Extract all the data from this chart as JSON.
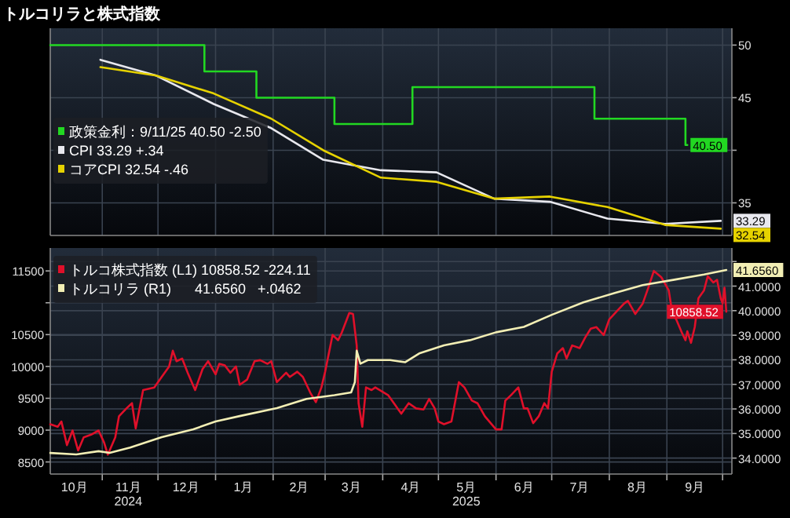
{
  "chart_data": [
    {
      "type": "line",
      "title": "トルコリラと株式指数",
      "legend": "left",
      "grid": true,
      "tick_labels": "y",
      "xlim": [
        "2024-10-04",
        "2025-10-06"
      ],
      "xticks": [
        {
          "value": "2024-11-01",
          "label": null
        },
        {
          "value": "2024-12-01",
          "label": null
        },
        {
          "value": "2025-01-01",
          "label": null
        },
        {
          "value": "2025-02-01",
          "label": null
        },
        {
          "value": "2025-03-01",
          "label": null
        },
        {
          "value": "2025-04-01",
          "label": null
        },
        {
          "value": "2025-05-01",
          "label": null
        },
        {
          "value": "2025-06-01",
          "label": null
        },
        {
          "value": "2025-07-01",
          "label": null
        },
        {
          "value": "2025-08-01",
          "label": null
        },
        {
          "value": "2025-09-01",
          "label": null
        },
        {
          "value": "2025-10-01",
          "label": null
        }
      ],
      "ylim": [
        31.9,
        51.6
      ],
      "yticks": [
        35,
        {
          "value": 40,
          "label": null
        },
        45,
        50
      ],
      "series": [
        {
          "name": "政策金利：9/11/25 40.50 -2.50",
          "type": "step",
          "color": "#22d822",
          "x": [
            "2024-10-04",
            "2024-12-26",
            "2025-01-23",
            "2025-03-06",
            "2025-04-17",
            "2025-07-24",
            "2025-09-11",
            "2025-09-12"
          ],
          "values": [
            50,
            47.5,
            45,
            42.5,
            46,
            43,
            40.5,
            40.5
          ],
          "value_labels": [
            null,
            null,
            null,
            null,
            null,
            null,
            null,
            "40.50"
          ]
        },
        {
          "name": "CPI 33.29 +.34",
          "color": "#e8e8ee",
          "x": [
            "2024-10-31",
            "2024-11-30",
            "2024-12-31",
            "2025-01-31",
            "2025-02-28",
            "2025-03-31",
            "2025-04-30",
            "2025-05-31",
            "2025-06-30",
            "2025-07-31",
            "2025-08-31",
            "2025-09-30"
          ],
          "values": [
            48.6,
            47.1,
            44.4,
            42.1,
            39.1,
            38.1,
            37.9,
            35.4,
            35.1,
            33.5,
            33.0,
            33.29
          ],
          "value_labels": [
            null,
            null,
            null,
            null,
            null,
            null,
            null,
            null,
            null,
            null,
            null,
            "33.29"
          ]
        },
        {
          "name": "コアCPI 32.54 -.46",
          "color": "#e6d200",
          "x": [
            "2024-10-31",
            "2024-11-30",
            "2024-12-31",
            "2025-01-31",
            "2025-02-28",
            "2025-03-31",
            "2025-04-30",
            "2025-05-31",
            "2025-06-30",
            "2025-07-31",
            "2025-08-31",
            "2025-09-30"
          ],
          "values": [
            47.9,
            47.1,
            45.4,
            43.0,
            40.0,
            37.4,
            37.0,
            35.4,
            35.6,
            34.6,
            32.9,
            32.54
          ],
          "value_labels": [
            null,
            null,
            null,
            null,
            null,
            null,
            null,
            null,
            null,
            null,
            null,
            "32.54"
          ]
        }
      ]
    },
    {
      "type": "line",
      "legend": "top left",
      "grid": true,
      "xlim": [
        "2024-10-04",
        "2025-10-06"
      ],
      "xticks": [
        {
          "value": "2024-10-17",
          "label": "10月"
        },
        {
          "value": "2024-11-01",
          "label": null
        },
        {
          "value": "2024-11-15",
          "label": "11月\n2024"
        },
        {
          "value": "2024-12-01",
          "label": null
        },
        {
          "value": "2024-12-16",
          "label": "12月"
        },
        {
          "value": "2025-01-01",
          "label": null
        },
        {
          "value": "2025-01-16",
          "label": "1月"
        },
        {
          "value": "2025-02-01",
          "label": null
        },
        {
          "value": "2025-02-15",
          "label": "2月"
        },
        {
          "value": "2025-03-01",
          "label": null
        },
        {
          "value": "2025-03-15",
          "label": "3月"
        },
        {
          "value": "2025-04-01",
          "label": null
        },
        {
          "value": "2025-04-16",
          "label": "4月"
        },
        {
          "value": "2025-05-01",
          "label": null
        },
        {
          "value": "2025-05-16",
          "label": "5月\n2025"
        },
        {
          "value": "2025-06-01",
          "label": null
        },
        {
          "value": "2025-06-16",
          "label": "6月"
        },
        {
          "value": "2025-07-01",
          "label": null
        },
        {
          "value": "2025-07-16",
          "label": "7月"
        },
        {
          "value": "2025-08-01",
          "label": null
        },
        {
          "value": "2025-08-16",
          "label": "8月"
        },
        {
          "value": "2025-09-01",
          "label": null
        },
        {
          "value": "2025-09-16",
          "label": "9月"
        },
        {
          "value": "2025-10-01",
          "label": null
        }
      ],
      "ylim": [
        8310,
        11860
      ],
      "yticks": [
        8500,
        9000,
        9500,
        10000,
        10500,
        {
          "value": 11000,
          "label": null
        },
        11500
      ],
      "y2lim": [
        33.35,
        42.55
      ],
      "y2ticks": [
        {
          "value": 34,
          "label": "34.0000"
        },
        {
          "value": 35,
          "label": "35.0000"
        },
        {
          "value": 36,
          "label": "36.0000"
        },
        {
          "value": 37,
          "label": "37.0000"
        },
        {
          "value": 38,
          "label": "38.0000"
        },
        {
          "value": 39,
          "label": "39.0000"
        },
        {
          "value": 40,
          "label": "40.0000"
        },
        {
          "value": 41,
          "label": "41.0000"
        },
        {
          "value": 42,
          "label": null
        }
      ],
      "series": [
        {
          "name": "トルコ株式指数 (L1) 10858.52 -224.11",
          "color": "#e0102a",
          "axis": "y",
          "x": [
            "2024-10-04",
            "2024-10-08",
            "2024-10-10",
            "2024-10-13",
            "2024-10-16",
            "2024-10-19",
            "2024-10-22",
            "2024-10-26",
            "2024-10-30",
            "2024-11-02",
            "2024-11-04",
            "2024-11-08",
            "2024-11-10",
            "2024-11-14",
            "2024-11-17",
            "2024-11-19",
            "2024-11-23",
            "2024-11-29",
            "2024-12-03",
            "2024-12-07",
            "2024-12-09",
            "2024-12-11",
            "2024-12-14",
            "2024-12-17",
            "2024-12-21",
            "2024-12-25",
            "2024-12-28",
            "2025-01-01",
            "2025-01-03",
            "2025-01-06",
            "2025-01-09",
            "2025-01-12",
            "2025-01-14",
            "2025-01-18",
            "2025-01-22",
            "2025-01-25",
            "2025-01-29",
            "2025-01-31",
            "2025-02-03",
            "2025-02-08",
            "2025-02-10",
            "2025-02-14",
            "2025-02-17",
            "2025-02-21",
            "2025-02-24",
            "2025-02-27",
            "2025-03-01",
            "2025-03-05",
            "2025-03-08",
            "2025-03-10",
            "2025-03-14",
            "2025-03-16",
            "2025-03-18",
            "2025-03-19",
            "2025-03-21",
            "2025-03-23",
            "2025-03-26",
            "2025-03-28",
            "2025-04-04",
            "2025-04-08",
            "2025-04-11",
            "2025-04-15",
            "2025-04-19",
            "2025-04-23",
            "2025-04-26",
            "2025-04-29",
            "2025-05-01",
            "2025-05-04",
            "2025-05-08",
            "2025-05-12",
            "2025-05-15",
            "2025-05-19",
            "2025-05-22",
            "2025-05-26",
            "2025-06-01",
            "2025-06-04",
            "2025-06-06",
            "2025-06-09",
            "2025-06-13",
            "2025-06-16",
            "2025-06-18",
            "2025-06-21",
            "2025-06-24",
            "2025-06-27",
            "2025-06-29",
            "2025-07-01",
            "2025-07-04",
            "2025-07-07",
            "2025-07-09",
            "2025-07-12",
            "2025-07-16",
            "2025-07-19",
            "2025-07-22",
            "2025-07-25",
            "2025-07-29",
            "2025-08-01",
            "2025-08-05",
            "2025-08-09",
            "2025-08-11",
            "2025-08-15",
            "2025-08-19",
            "2025-08-22",
            "2025-08-25",
            "2025-08-29",
            "2025-09-02",
            "2025-09-04",
            "2025-09-06",
            "2025-09-09",
            "2025-09-11",
            "2025-09-12",
            "2025-09-14",
            "2025-09-16",
            "2025-09-18",
            "2025-09-21",
            "2025-09-23",
            "2025-09-26",
            "2025-09-28",
            "2025-09-30",
            "2025-10-01",
            "2025-10-02",
            "2025-10-03"
          ],
          "values": [
            9093,
            9052,
            9135,
            8764,
            8994,
            8681,
            8887,
            8929,
            8994,
            8805,
            8615,
            8887,
            9217,
            9341,
            9423,
            9027,
            9629,
            9670,
            9835,
            10000,
            10247,
            10082,
            10124,
            9901,
            9629,
            9959,
            10082,
            9876,
            10041,
            10016,
            9901,
            10000,
            9712,
            9794,
            10082,
            10099,
            10041,
            10082,
            9753,
            9901,
            9835,
            9917,
            9835,
            9588,
            9440,
            9670,
            9917,
            10494,
            10412,
            10535,
            10840,
            10824,
            10330,
            9423,
            9052,
            9670,
            9629,
            9670,
            9547,
            9382,
            9258,
            9423,
            9341,
            9324,
            9489,
            9341,
            9135,
            9093,
            9135,
            9753,
            9670,
            9464,
            9423,
            9217,
            9011,
            9011,
            9464,
            9547,
            9670,
            9341,
            9341,
            9110,
            9217,
            9423,
            9341,
            9917,
            10206,
            10288,
            10124,
            10330,
            10288,
            10453,
            10593,
            10618,
            10494,
            10741,
            10865,
            10989,
            11030,
            10824,
            10989,
            11236,
            11500,
            11401,
            11195,
            10824,
            10741,
            10535,
            10412,
            10552,
            10371,
            10618,
            11071,
            11195,
            11417,
            11318,
            11360,
            11071,
            10989,
            11236,
            10858.52
          ],
          "value_labels": [
            null,
            null,
            null,
            null,
            null,
            null,
            null,
            null,
            null,
            null,
            null,
            null,
            null,
            null,
            null,
            null,
            null,
            null,
            null,
            null,
            null,
            null,
            null,
            null,
            null,
            null,
            null,
            null,
            null,
            null,
            null,
            null,
            null,
            null,
            null,
            null,
            null,
            null,
            null,
            null,
            null,
            null,
            null,
            null,
            null,
            null,
            null,
            null,
            null,
            null,
            null,
            null,
            null,
            null,
            null,
            null,
            null,
            null,
            null,
            null,
            null,
            null,
            null,
            null,
            null,
            null,
            null,
            null,
            null,
            null,
            null,
            null,
            null,
            null,
            null,
            null,
            null,
            null,
            null,
            null,
            null,
            null,
            null,
            null,
            null,
            null,
            null,
            null,
            null,
            null,
            null,
            null,
            null,
            null,
            null,
            null,
            null,
            null,
            null,
            null,
            null,
            null,
            null,
            null,
            null,
            null,
            null,
            null,
            null,
            null,
            null,
            null,
            null,
            null,
            null,
            null,
            null,
            null,
            null,
            null,
            "10858.52"
          ]
        },
        {
          "name": "トルコリラ (R1)      41.6560   +.0462",
          "color": "#f2eeb4",
          "axis": "y2",
          "x": [
            "2024-10-04",
            "2024-10-18",
            "2024-10-30",
            "2024-11-05",
            "2024-11-16",
            "2024-12-03",
            "2024-12-20",
            "2025-01-01",
            "2025-01-14",
            "2025-02-03",
            "2025-02-19",
            "2025-03-06",
            "2025-03-15",
            "2025-03-17",
            "2025-03-18",
            "2025-03-20",
            "2025-03-24",
            "2025-04-05",
            "2025-04-13",
            "2025-04-21",
            "2025-05-04",
            "2025-05-18",
            "2025-06-01",
            "2025-06-16",
            "2025-07-01",
            "2025-07-18",
            "2025-08-04",
            "2025-08-19",
            "2025-09-05",
            "2025-09-21",
            "2025-10-03"
          ],
          "values": [
            34.21,
            34.15,
            34.28,
            34.21,
            34.43,
            34.85,
            35.17,
            35.49,
            35.71,
            36.03,
            36.41,
            36.56,
            36.67,
            37.09,
            38.37,
            37.84,
            37.99,
            37.99,
            37.9,
            38.27,
            38.59,
            38.8,
            39.12,
            39.34,
            39.83,
            40.34,
            40.72,
            41.04,
            41.26,
            41.47,
            41.656
          ],
          "value_labels": [
            null,
            null,
            null,
            null,
            null,
            null,
            null,
            null,
            null,
            null,
            null,
            null,
            null,
            null,
            null,
            null,
            null,
            null,
            null,
            null,
            null,
            null,
            null,
            null,
            null,
            null,
            null,
            null,
            null,
            null,
            "41.6560"
          ]
        }
      ]
    }
  ]
}
